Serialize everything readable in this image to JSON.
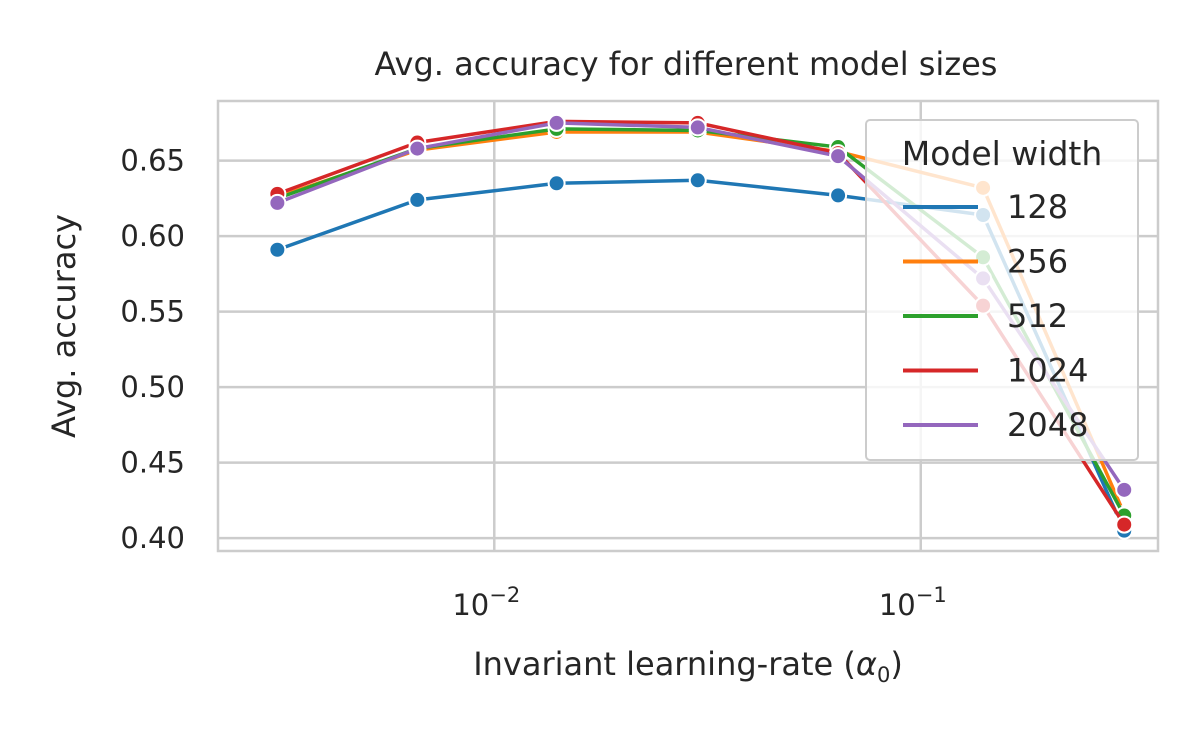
{
  "chart_data": {
    "type": "line",
    "title": "Avg. accuracy for different model sizes",
    "xlabel": "Invariant learning-rate",
    "xlabel_symbol": "α",
    "xlabel_subscript": "0",
    "ylabel": "Avg. accuracy",
    "xscale": "log",
    "xlim": [
      0.00225,
      0.36
    ],
    "ylim": [
      0.3915,
      0.6895
    ],
    "x_ticks": [
      {
        "value": 0.01,
        "base": "10",
        "exp": "−2"
      },
      {
        "value": 0.1,
        "base": "10",
        "exp": "−1"
      }
    ],
    "y_ticks": [
      {
        "value": 0.4,
        "label": "0.40"
      },
      {
        "value": 0.45,
        "label": "0.45"
      },
      {
        "value": 0.5,
        "label": "0.50"
      },
      {
        "value": 0.55,
        "label": "0.55"
      },
      {
        "value": 0.6,
        "label": "0.60"
      },
      {
        "value": 0.65,
        "label": "0.65"
      }
    ],
    "grid": true,
    "x": [
      0.0031,
      0.0066,
      0.014,
      0.03,
      0.064,
      0.14,
      0.3
    ],
    "series": [
      {
        "name": "128",
        "color": "#1f77b4",
        "values": [
          0.591,
          0.624,
          0.635,
          0.637,
          0.627,
          0.614,
          0.405
        ]
      },
      {
        "name": "256",
        "color": "#ff7f0e",
        "values": [
          0.626,
          0.657,
          0.669,
          0.669,
          0.656,
          0.632,
          0.416
        ]
      },
      {
        "name": "512",
        "color": "#2ca02c",
        "values": [
          0.625,
          0.658,
          0.671,
          0.67,
          0.659,
          0.586,
          0.415
        ]
      },
      {
        "name": "1024",
        "color": "#d62728",
        "values": [
          0.628,
          0.662,
          0.676,
          0.675,
          0.655,
          0.554,
          0.409
        ]
      },
      {
        "name": "2048",
        "color": "#9467bd",
        "values": [
          0.622,
          0.658,
          0.675,
          0.672,
          0.653,
          0.572,
          0.432
        ]
      }
    ],
    "legend": {
      "title": "Model width",
      "position": "upper-right"
    }
  }
}
